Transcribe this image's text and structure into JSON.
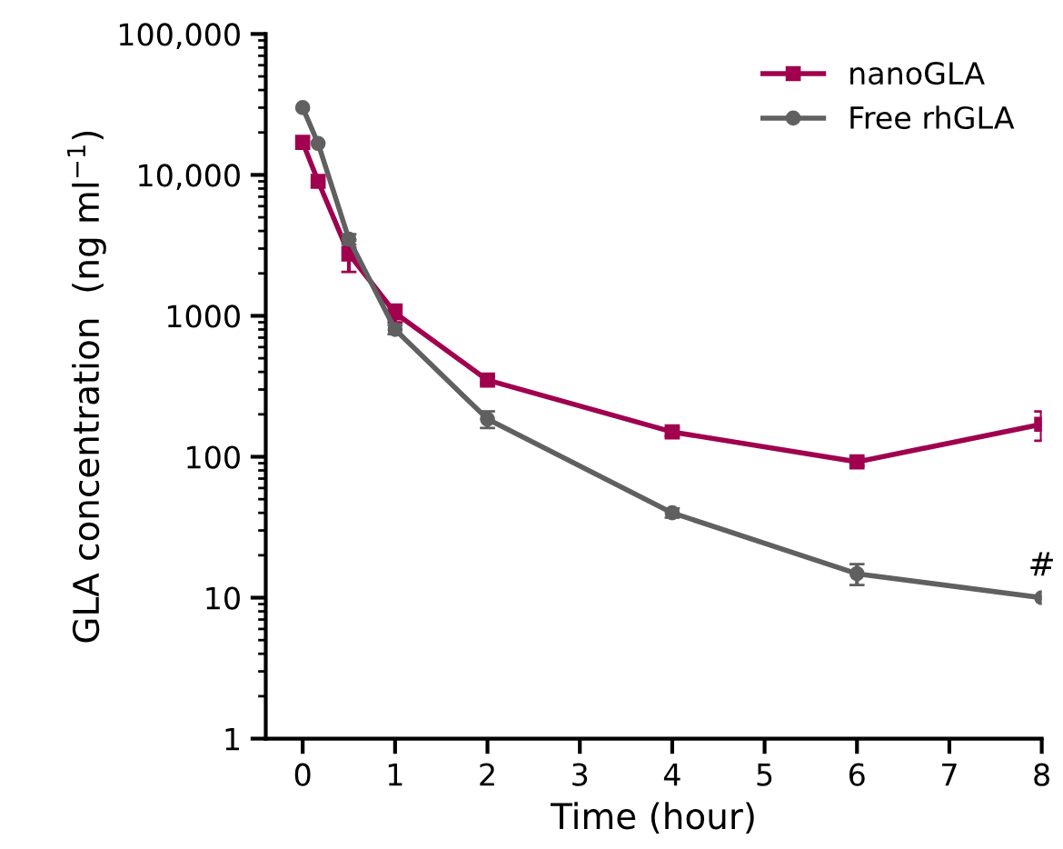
{
  "chart_data": {
    "type": "line",
    "xlabel": "Time (hour)",
    "ylabel": "GLA concentration  (ng ml$^{−1}$)",
    "log": "y",
    "xlim": [
      -0.4,
      8
    ],
    "ylim": [
      1,
      100000
    ],
    "xticks": [
      0,
      1,
      2,
      3,
      4,
      5,
      6,
      7,
      8
    ],
    "yticks": [
      1,
      10,
      100,
      1000,
      {
        "value": 10000,
        "label": "10,000"
      },
      {
        "value": 100000,
        "label": "100,000"
      }
    ],
    "legend": "top right",
    "grid": false,
    "line_style": "solid",
    "series": [
      {
        "name": "nanoGLA",
        "color": "#a0004e",
        "marker": "square",
        "x": [
          0,
          0.167,
          0.5,
          1,
          2,
          4,
          6,
          8
        ],
        "values": [
          17000,
          9000,
          2750,
          1050,
          350,
          150,
          92,
          170
        ],
        "errors": [
          null,
          null,
          700,
          150,
          20,
          10,
          6,
          40
        ]
      },
      {
        "name": "Free rhGLA",
        "color": "#606060",
        "marker": "circle",
        "x": [
          0,
          0.167,
          0.5,
          1,
          2,
          4,
          6,
          8
        ],
        "values": [
          30000,
          16700,
          3500,
          800,
          185,
          40,
          14.8,
          10
        ],
        "errors": [
          null,
          null,
          300,
          60,
          25,
          3,
          2.5,
          null
        ]
      }
    ],
    "annotations": [
      {
        "text": "#",
        "x": 8,
        "y": 10
      }
    ]
  }
}
